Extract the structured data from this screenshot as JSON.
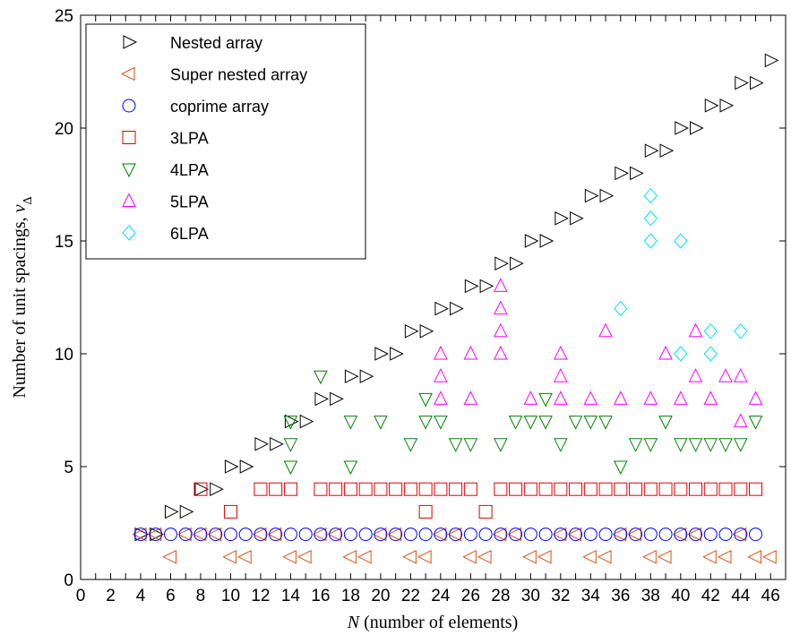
{
  "chart_data": {
    "type": "scatter",
    "title": "",
    "xlabel_italic": "N",
    "xlabel_rest": " (number of elements)",
    "ylabel_main": "Number of unit spacings,  ",
    "ylabel_sym": "ν",
    "ylabel_sub": "Δ",
    "xlim": [
      0,
      47
    ],
    "ylim": [
      0,
      25
    ],
    "xticks": [
      0,
      2,
      4,
      6,
      8,
      10,
      12,
      14,
      16,
      18,
      20,
      22,
      24,
      26,
      28,
      30,
      32,
      34,
      36,
      38,
      40,
      42,
      44,
      46
    ],
    "yticks": [
      0,
      5,
      10,
      15,
      20,
      25
    ],
    "grid": false,
    "legend_position": "top-left",
    "series": [
      {
        "name": "Nested array",
        "marker": "triangle-right",
        "color": "#000000",
        "points": [
          [
            4,
            2
          ],
          [
            5,
            2
          ],
          [
            6,
            3
          ],
          [
            7,
            3
          ],
          [
            8,
            4
          ],
          [
            9,
            4
          ],
          [
            10,
            5
          ],
          [
            11,
            5
          ],
          [
            12,
            6
          ],
          [
            13,
            6
          ],
          [
            14,
            7
          ],
          [
            15,
            7
          ],
          [
            16,
            8
          ],
          [
            17,
            8
          ],
          [
            18,
            9
          ],
          [
            19,
            9
          ],
          [
            20,
            10
          ],
          [
            21,
            10
          ],
          [
            22,
            11
          ],
          [
            23,
            11
          ],
          [
            24,
            12
          ],
          [
            25,
            12
          ],
          [
            26,
            13
          ],
          [
            27,
            13
          ],
          [
            28,
            14
          ],
          [
            29,
            14
          ],
          [
            30,
            15
          ],
          [
            31,
            15
          ],
          [
            32,
            16
          ],
          [
            33,
            16
          ],
          [
            34,
            17
          ],
          [
            35,
            17
          ],
          [
            36,
            18
          ],
          [
            37,
            18
          ],
          [
            38,
            19
          ],
          [
            39,
            19
          ],
          [
            40,
            20
          ],
          [
            41,
            20
          ],
          [
            42,
            21
          ],
          [
            43,
            21
          ],
          [
            44,
            22
          ],
          [
            45,
            22
          ],
          [
            46,
            23
          ]
        ]
      },
      {
        "name": "Super nested array",
        "marker": "triangle-left",
        "color": "#d95319",
        "points": [
          [
            4,
            2
          ],
          [
            5,
            2
          ],
          [
            6,
            1
          ],
          [
            7,
            2
          ],
          [
            8,
            2
          ],
          [
            9,
            2
          ],
          [
            10,
            1
          ],
          [
            11,
            1
          ],
          [
            12,
            2
          ],
          [
            13,
            2
          ],
          [
            14,
            1
          ],
          [
            15,
            1
          ],
          [
            16,
            2
          ],
          [
            17,
            2
          ],
          [
            18,
            1
          ],
          [
            19,
            1
          ],
          [
            20,
            2
          ],
          [
            21,
            2
          ],
          [
            22,
            1
          ],
          [
            23,
            1
          ],
          [
            24,
            2
          ],
          [
            25,
            2
          ],
          [
            26,
            1
          ],
          [
            27,
            1
          ],
          [
            28,
            2
          ],
          [
            29,
            2
          ],
          [
            30,
            1
          ],
          [
            31,
            1
          ],
          [
            32,
            2
          ],
          [
            33,
            2
          ],
          [
            34,
            1
          ],
          [
            35,
            1
          ],
          [
            36,
            2
          ],
          [
            37,
            2
          ],
          [
            38,
            1
          ],
          [
            39,
            1
          ],
          [
            40,
            2
          ],
          [
            41,
            2
          ],
          [
            42,
            1
          ],
          [
            43,
            1
          ],
          [
            44,
            2
          ],
          [
            45,
            1
          ],
          [
            46,
            1
          ]
        ]
      },
      {
        "name": "coprime array",
        "marker": "circle",
        "color": "#0000ff",
        "points": [
          [
            4,
            2
          ],
          [
            5,
            2
          ],
          [
            6,
            2
          ],
          [
            7,
            2
          ],
          [
            8,
            2
          ],
          [
            9,
            2
          ],
          [
            10,
            2
          ],
          [
            11,
            2
          ],
          [
            12,
            2
          ],
          [
            13,
            2
          ],
          [
            14,
            2
          ],
          [
            15,
            2
          ],
          [
            16,
            2
          ],
          [
            17,
            2
          ],
          [
            18,
            2
          ],
          [
            19,
            2
          ],
          [
            20,
            2
          ],
          [
            21,
            2
          ],
          [
            22,
            2
          ],
          [
            23,
            2
          ],
          [
            24,
            2
          ],
          [
            25,
            2
          ],
          [
            26,
            2
          ],
          [
            27,
            2
          ],
          [
            28,
            2
          ],
          [
            29,
            2
          ],
          [
            30,
            2
          ],
          [
            31,
            2
          ],
          [
            32,
            2
          ],
          [
            33,
            2
          ],
          [
            34,
            2
          ],
          [
            35,
            2
          ],
          [
            36,
            2
          ],
          [
            37,
            2
          ],
          [
            38,
            2
          ],
          [
            39,
            2
          ],
          [
            40,
            2
          ],
          [
            41,
            2
          ],
          [
            42,
            2
          ],
          [
            43,
            2
          ],
          [
            44,
            2
          ],
          [
            45,
            2
          ]
        ]
      },
      {
        "name": "3LPA",
        "marker": "square",
        "color": "#e00000",
        "points": [
          [
            8,
            4
          ],
          [
            10,
            3
          ],
          [
            12,
            4
          ],
          [
            13,
            4
          ],
          [
            14,
            4
          ],
          [
            16,
            4
          ],
          [
            17,
            4
          ],
          [
            18,
            4
          ],
          [
            19,
            4
          ],
          [
            20,
            4
          ],
          [
            21,
            4
          ],
          [
            22,
            4
          ],
          [
            23,
            3
          ],
          [
            23,
            4
          ],
          [
            24,
            4
          ],
          [
            25,
            4
          ],
          [
            26,
            4
          ],
          [
            27,
            3
          ],
          [
            28,
            4
          ],
          [
            29,
            4
          ],
          [
            30,
            4
          ],
          [
            31,
            4
          ],
          [
            32,
            4
          ],
          [
            33,
            4
          ],
          [
            34,
            4
          ],
          [
            35,
            4
          ],
          [
            36,
            4
          ],
          [
            37,
            4
          ],
          [
            38,
            4
          ],
          [
            39,
            4
          ],
          [
            40,
            4
          ],
          [
            41,
            4
          ],
          [
            42,
            4
          ],
          [
            43,
            4
          ],
          [
            44,
            4
          ],
          [
            45,
            4
          ]
        ]
      },
      {
        "name": "4LPA",
        "marker": "triangle-down",
        "color": "#008000",
        "points": [
          [
            14,
            5
          ],
          [
            14,
            6
          ],
          [
            14,
            7
          ],
          [
            16,
            9
          ],
          [
            18,
            5
          ],
          [
            18,
            7
          ],
          [
            20,
            7
          ],
          [
            22,
            6
          ],
          [
            23,
            7
          ],
          [
            23,
            8
          ],
          [
            24,
            7
          ],
          [
            25,
            6
          ],
          [
            26,
            6
          ],
          [
            28,
            6
          ],
          [
            29,
            7
          ],
          [
            30,
            7
          ],
          [
            31,
            7
          ],
          [
            31,
            8
          ],
          [
            32,
            6
          ],
          [
            33,
            7
          ],
          [
            34,
            7
          ],
          [
            35,
            7
          ],
          [
            36,
            5
          ],
          [
            37,
            6
          ],
          [
            38,
            6
          ],
          [
            39,
            7
          ],
          [
            40,
            6
          ],
          [
            41,
            6
          ],
          [
            42,
            6
          ],
          [
            43,
            6
          ],
          [
            44,
            6
          ],
          [
            45,
            7
          ]
        ]
      },
      {
        "name": "5LPA",
        "marker": "triangle-up",
        "color": "#ff00ff",
        "points": [
          [
            24,
            8
          ],
          [
            24,
            9
          ],
          [
            24,
            10
          ],
          [
            26,
            8
          ],
          [
            26,
            10
          ],
          [
            28,
            10
          ],
          [
            28,
            11
          ],
          [
            28,
            12
          ],
          [
            28,
            13
          ],
          [
            30,
            8
          ],
          [
            32,
            8
          ],
          [
            32,
            9
          ],
          [
            32,
            10
          ],
          [
            34,
            8
          ],
          [
            35,
            11
          ],
          [
            36,
            8
          ],
          [
            38,
            8
          ],
          [
            39,
            10
          ],
          [
            40,
            8
          ],
          [
            41,
            9
          ],
          [
            41,
            11
          ],
          [
            42,
            8
          ],
          [
            43,
            9
          ],
          [
            44,
            7
          ],
          [
            44,
            9
          ],
          [
            45,
            8
          ]
        ]
      },
      {
        "name": "6LPA",
        "marker": "diamond",
        "color": "#00e5ee",
        "points": [
          [
            36,
            12
          ],
          [
            38,
            15
          ],
          [
            38,
            16
          ],
          [
            38,
            17
          ],
          [
            40,
            10
          ],
          [
            40,
            15
          ],
          [
            42,
            10
          ],
          [
            42,
            11
          ],
          [
            44,
            11
          ]
        ]
      }
    ]
  }
}
